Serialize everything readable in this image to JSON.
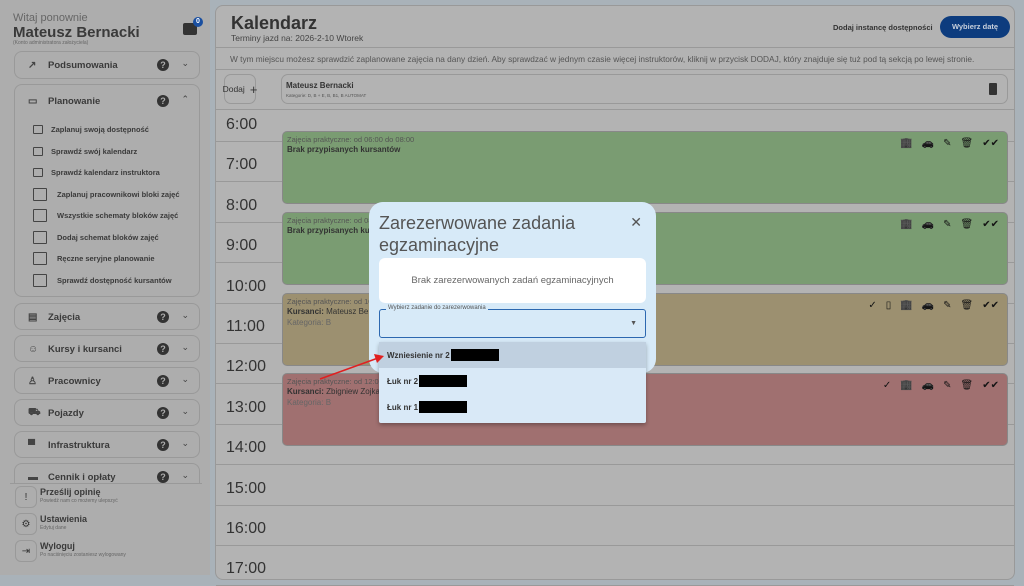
{
  "sidebar": {
    "welcome": "Witaj ponownie",
    "user": "Mateusz Bernacki",
    "role": "(Konto administratora założyciela)",
    "notifications": "0",
    "sections": [
      {
        "label": "Podsumowania",
        "icon": "trending-up-icon"
      },
      {
        "label": "Planowanie",
        "icon": "calendar-icon",
        "expanded": true
      },
      {
        "label": "Zajęcia",
        "icon": "clipboard-icon"
      },
      {
        "label": "Kursy i kursanci",
        "icon": "face-icon"
      },
      {
        "label": "Pracownicy",
        "icon": "person-icon"
      },
      {
        "label": "Pojazdy",
        "icon": "vehicles-icon"
      },
      {
        "label": "Infrastruktura",
        "icon": "store-icon"
      },
      {
        "label": "Cennik i opłaty",
        "icon": "credit-card-icon"
      }
    ],
    "planowanie_items": [
      "Zaplanuj swoją dostępność",
      "Sprawdź swój kalendarz",
      "Sprawdź kalendarz instruktora",
      "Zaplanuj pracownikowi bloki zajęć",
      "Wszystkie schematy bloków zajęć",
      "Dodaj schemat bloków zajęć",
      "Ręczne seryjne planowanie",
      "Sprawdź dostępność kursantów"
    ],
    "footer": [
      {
        "title": "Prześlij opinię",
        "sub": "Powiedź nam co możemy ulepszyć"
      },
      {
        "title": "Ustawienia",
        "sub": "Edytuj dane"
      },
      {
        "title": "Wyloguj",
        "sub": "Po naciśnięciu zostaniesz wylogowany"
      }
    ]
  },
  "header": {
    "title": "Kalendarz",
    "subtitle": "Terminy jazd na: 2026-2-10 Wtorek",
    "add_instance": "Dodaj instancę dostępności",
    "pick_date": "Wybierz datę"
  },
  "info": "W tym miejscu możesz sprawdzić zaplanowane zajęcia na dany dzień. Aby sprawdzać w jednym czasie więcej instruktorów, kliknij w przycisk DODAJ, który znajduje się tuż pod tą sekcją po lewej stronie.",
  "instructors": {
    "add_label": "Dodaj",
    "name": "Mateusz Bernacki",
    "categories": "Kategorie: D, B + E, B, B1, B AUTOMAT"
  },
  "hours": [
    "6:00",
    "7:00",
    "8:00",
    "9:00",
    "10:00",
    "11:00",
    "12:00",
    "13:00",
    "14:00",
    "15:00",
    "16:00",
    "17:00"
  ],
  "events": [
    {
      "time": "Zajęcia praktyczne: od 06:00 do 08:00",
      "students_label": "",
      "students": "Brak przypisanych kursantów",
      "category": "",
      "color": "#7a9c72"
    },
    {
      "time": "Zajęcia praktyczne: od 08:00 do 10:00",
      "students_label": "",
      "students": "Brak przypisanych kursantów",
      "category": "",
      "color": "#7a9c72"
    },
    {
      "time": "Zajęcia praktyczne: od 10:00 do 12:00",
      "students_label": "Kursanci:",
      "students": "Mateusz Be",
      "category": "Kategoria: B",
      "color": "#9c9070"
    },
    {
      "time": "Zajęcia praktyczne: od 12:00",
      "students_label": "Kursanci:",
      "students": "Zbigniew Zojka",
      "category": "Kategoria: B",
      "color": "#a07070"
    }
  ],
  "modal": {
    "title": "Zarezerwowane zadania egzaminacyjne",
    "empty": "Brak zarezerwowanych zadań egzaminacyjnych",
    "select_label": "Wybierz zadanie do zarezerwowania",
    "select_value": "",
    "options": [
      "Wzniesienie nr 2",
      "Łuk nr 2",
      "Łuk nr 1"
    ],
    "highlighted": 0
  },
  "colors": {
    "accent": "#0d3c7e",
    "modal_bg": "#d7eaf8",
    "arrow": "#e02020"
  }
}
